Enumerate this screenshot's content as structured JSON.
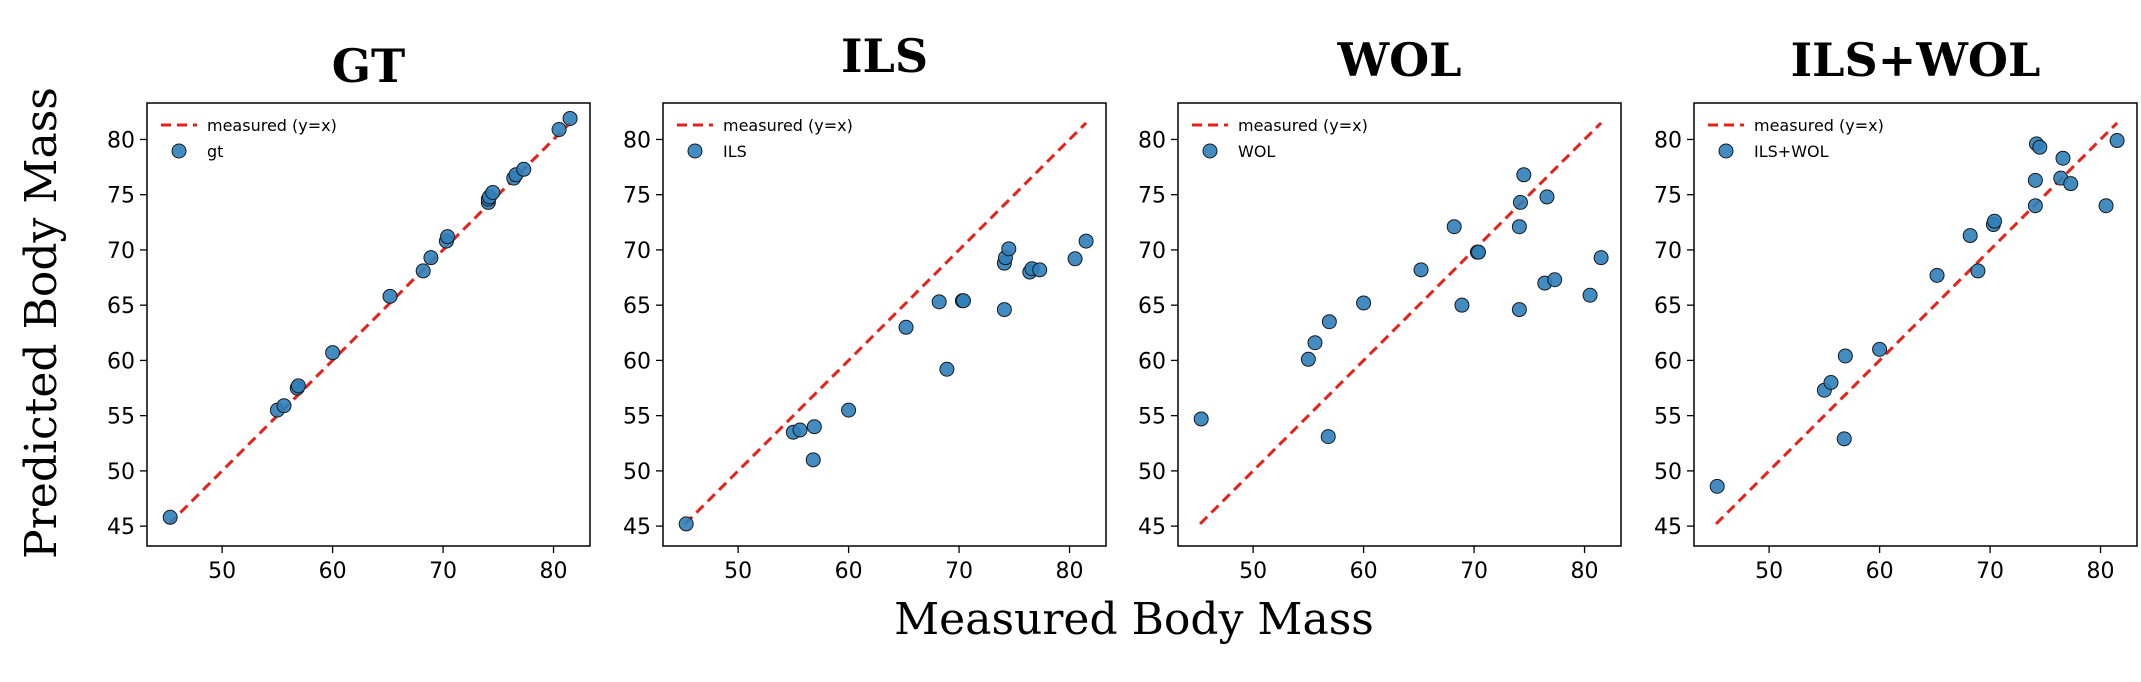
{
  "chart_data": {
    "ylabel": "Predicted Body Mass",
    "xlabel": "Measured Body Mass",
    "xlim": [
      43.2,
      83.3
    ],
    "ylim": [
      43.2,
      83.3
    ],
    "xticks": [
      50,
      60,
      70,
      80
    ],
    "yticks": [
      45,
      50,
      55,
      60,
      65,
      70,
      75,
      80
    ],
    "line_label": "measured (y=x)",
    "line_color": "#e8201a",
    "point_color": "#2f7fba",
    "panels": [
      {
        "title": "GT",
        "legend": "gt",
        "x": [
          45.3,
          55.0,
          55.6,
          56.8,
          56.9,
          60.0,
          65.2,
          68.2,
          68.9,
          70.3,
          70.4,
          74.1,
          74.1,
          74.2,
          74.5,
          76.4,
          76.6,
          77.3,
          80.5,
          81.5
        ],
        "y": [
          45.8,
          55.5,
          55.9,
          57.5,
          57.7,
          60.7,
          65.8,
          68.1,
          69.3,
          70.8,
          71.2,
          74.3,
          74.6,
          74.8,
          75.2,
          76.5,
          76.8,
          77.3,
          80.9,
          81.9
        ]
      },
      {
        "title": "ILS",
        "legend": "ILS",
        "x": [
          45.3,
          55.0,
          55.6,
          56.8,
          56.9,
          60.0,
          65.2,
          68.2,
          68.9,
          70.3,
          70.4,
          74.1,
          74.1,
          74.2,
          74.5,
          76.4,
          76.6,
          77.3,
          80.5,
          81.5
        ],
        "y": [
          45.2,
          53.5,
          53.7,
          51.0,
          54.0,
          55.5,
          63.0,
          65.3,
          59.2,
          65.4,
          65.4,
          64.6,
          68.8,
          69.3,
          70.1,
          68.0,
          68.3,
          68.2,
          69.2,
          70.8
        ]
      },
      {
        "title": "WOL",
        "legend": "WOL",
        "x": [
          45.3,
          55.0,
          55.6,
          56.8,
          56.9,
          60.0,
          65.2,
          68.2,
          68.9,
          70.3,
          70.4,
          74.1,
          74.1,
          74.2,
          74.5,
          76.4,
          76.6,
          77.3,
          80.5,
          81.5
        ],
        "y": [
          54.7,
          60.1,
          61.6,
          53.1,
          63.5,
          65.2,
          68.2,
          72.1,
          65.0,
          69.8,
          69.8,
          64.6,
          72.1,
          74.3,
          76.8,
          67.0,
          74.8,
          67.3,
          65.9,
          69.3
        ]
      },
      {
        "title": "ILS+WOL",
        "legend": "ILS+WOL",
        "x": [
          45.3,
          55.0,
          55.6,
          56.8,
          56.9,
          60.0,
          65.2,
          68.2,
          68.9,
          70.3,
          70.4,
          74.1,
          74.1,
          74.2,
          74.5,
          76.4,
          76.6,
          77.3,
          80.5,
          81.5
        ],
        "y": [
          48.6,
          57.3,
          58.0,
          52.9,
          60.4,
          61.0,
          67.7,
          71.3,
          68.1,
          72.3,
          72.6,
          74.0,
          76.3,
          79.6,
          79.3,
          76.5,
          78.3,
          76.0,
          74.0,
          79.9
        ]
      }
    ]
  }
}
